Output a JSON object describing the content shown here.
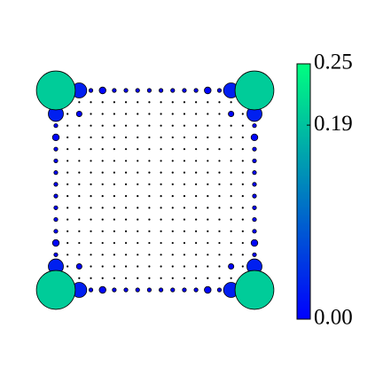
{
  "chart_data": {
    "type": "bubble-grid",
    "values": [
      [
        0.2,
        0.002,
        0.03,
        0.002,
        0.006,
        0.002,
        0.002,
        0.002,
        0.002,
        0.002,
        0.002,
        0.002,
        0.002,
        0.006,
        0.002,
        0.03,
        0.002,
        0.2
      ],
      [
        0.002,
        0.0005,
        0.0005,
        0.0005,
        0.0005,
        0.0005,
        0.0005,
        0.0005,
        0.0005,
        0.0005,
        0.0005,
        0.0005,
        0.0005,
        0.0005,
        0.0005,
        0.0005,
        0.0005,
        0.002
      ],
      [
        0.03,
        0.0005,
        0.004,
        0.0005,
        0.0005,
        0.0005,
        0.0005,
        0.0005,
        0.0005,
        0.0005,
        0.0005,
        0.0005,
        0.0005,
        0.0005,
        0.0005,
        0.004,
        0.0005,
        0.03
      ],
      [
        0.002,
        0.0005,
        0.0005,
        0.0005,
        0.0005,
        0.0005,
        0.0005,
        0.0005,
        0.0005,
        0.0005,
        0.0005,
        0.0005,
        0.0005,
        0.0005,
        0.0005,
        0.0005,
        0.0005,
        0.002
      ],
      [
        0.006,
        0.0005,
        0.0005,
        0.0005,
        0.0005,
        0.0005,
        0.0005,
        0.0005,
        0.0005,
        0.0005,
        0.0005,
        0.0005,
        0.0005,
        0.0005,
        0.0005,
        0.0005,
        0.0005,
        0.006
      ],
      [
        0.002,
        0.0005,
        0.0005,
        0.0005,
        0.0005,
        0.0005,
        0.0005,
        0.0005,
        0.0005,
        0.0005,
        0.0005,
        0.0005,
        0.0005,
        0.0005,
        0.0005,
        0.0005,
        0.0005,
        0.002
      ],
      [
        0.002,
        0.0005,
        0.0005,
        0.0005,
        0.0005,
        0.0005,
        0.0005,
        0.0005,
        0.0005,
        0.0005,
        0.0005,
        0.0005,
        0.0005,
        0.0005,
        0.0005,
        0.0005,
        0.0005,
        0.002
      ],
      [
        0.002,
        0.0005,
        0.0005,
        0.0005,
        0.0005,
        0.0005,
        0.0005,
        0.0005,
        0.0005,
        0.0005,
        0.0005,
        0.0005,
        0.0005,
        0.0005,
        0.0005,
        0.0005,
        0.0005,
        0.002
      ],
      [
        0.002,
        0.0005,
        0.0005,
        0.0005,
        0.0005,
        0.0005,
        0.0005,
        0.0005,
        0.0005,
        0.0005,
        0.0005,
        0.0005,
        0.0005,
        0.0005,
        0.0005,
        0.0005,
        0.0005,
        0.002
      ],
      [
        0.002,
        0.0005,
        0.0005,
        0.0005,
        0.0005,
        0.0005,
        0.0005,
        0.0005,
        0.0005,
        0.0005,
        0.0005,
        0.0005,
        0.0005,
        0.0005,
        0.0005,
        0.0005,
        0.0005,
        0.002
      ],
      [
        0.002,
        0.0005,
        0.0005,
        0.0005,
        0.0005,
        0.0005,
        0.0005,
        0.0005,
        0.0005,
        0.0005,
        0.0005,
        0.0005,
        0.0005,
        0.0005,
        0.0005,
        0.0005,
        0.0005,
        0.002
      ],
      [
        0.002,
        0.0005,
        0.0005,
        0.0005,
        0.0005,
        0.0005,
        0.0005,
        0.0005,
        0.0005,
        0.0005,
        0.0005,
        0.0005,
        0.0005,
        0.0005,
        0.0005,
        0.0005,
        0.0005,
        0.002
      ],
      [
        0.002,
        0.0005,
        0.0005,
        0.0005,
        0.0005,
        0.0005,
        0.0005,
        0.0005,
        0.0005,
        0.0005,
        0.0005,
        0.0005,
        0.0005,
        0.0005,
        0.0005,
        0.0005,
        0.0005,
        0.002
      ],
      [
        0.006,
        0.0005,
        0.0005,
        0.0005,
        0.0005,
        0.0005,
        0.0005,
        0.0005,
        0.0005,
        0.0005,
        0.0005,
        0.0005,
        0.0005,
        0.0005,
        0.0005,
        0.0005,
        0.0005,
        0.006
      ],
      [
        0.002,
        0.0005,
        0.0005,
        0.0005,
        0.0005,
        0.0005,
        0.0005,
        0.0005,
        0.0005,
        0.0005,
        0.0005,
        0.0005,
        0.0005,
        0.0005,
        0.0005,
        0.0005,
        0.0005,
        0.002
      ],
      [
        0.03,
        0.0005,
        0.004,
        0.0005,
        0.0005,
        0.0005,
        0.0005,
        0.0005,
        0.0005,
        0.0005,
        0.0005,
        0.0005,
        0.0005,
        0.0005,
        0.0005,
        0.004,
        0.0005,
        0.03
      ],
      [
        0.002,
        0.0005,
        0.0005,
        0.0005,
        0.0005,
        0.0005,
        0.0005,
        0.0005,
        0.0005,
        0.0005,
        0.0005,
        0.0005,
        0.0005,
        0.0005,
        0.0005,
        0.0005,
        0.0005,
        0.002
      ],
      [
        0.2,
        0.002,
        0.03,
        0.002,
        0.006,
        0.002,
        0.002,
        0.002,
        0.002,
        0.002,
        0.002,
        0.002,
        0.002,
        0.006,
        0.002,
        0.03,
        0.002,
        0.2
      ]
    ],
    "colormap": [
      "#0000ff",
      "#00ff80"
    ],
    "clim": [
      0,
      0.25
    ],
    "cticks": [
      {
        "value": 0,
        "label": "0.00"
      },
      0.19,
      0.25
    ]
  }
}
